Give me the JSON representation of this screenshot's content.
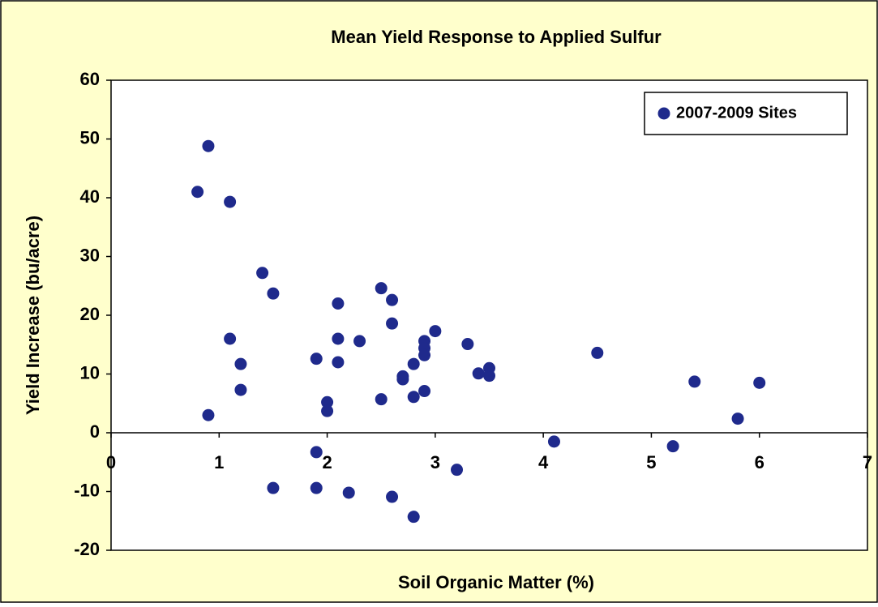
{
  "chart_data": {
    "type": "scatter",
    "title": "Mean Yield Response to Applied Sulfur",
    "x_label": "Soil Organic Matter (%)",
    "y_label": "Yield Increase (bu/acre)",
    "series": [
      {
        "name": "2007-2009 Sites",
        "color": "#1f2a8c",
        "x": [
          0.8,
          0.9,
          1.1,
          0.9,
          1.1,
          1.2,
          1.2,
          1.4,
          1.5,
          1.5,
          1.9,
          1.9,
          1.9,
          2.0,
          2.0,
          2.1,
          2.1,
          2.1,
          2.2,
          2.3,
          2.5,
          2.5,
          2.6,
          2.6,
          2.6,
          2.7,
          2.7,
          2.8,
          2.8,
          2.8,
          2.9,
          2.9,
          2.9,
          2.9,
          3.0,
          3.2,
          3.3,
          3.4,
          3.5,
          3.5,
          4.1,
          4.5,
          5.2,
          5.4,
          5.8,
          6.0
        ],
        "values": [
          41,
          48.8,
          39.3,
          3,
          16,
          11.7,
          7.3,
          27.2,
          23.7,
          -9.4,
          12.6,
          -3.3,
          -9.4,
          5.2,
          3.7,
          22,
          16,
          12,
          -10.2,
          15.6,
          24.6,
          5.7,
          22.6,
          18.6,
          -10.9,
          9.6,
          9.1,
          11.7,
          6.1,
          -14.3,
          15.6,
          14.4,
          13.2,
          7.1,
          17.3,
          -6.3,
          15.1,
          10.1,
          11,
          9.7,
          -1.5,
          13.6,
          -2.3,
          8.7,
          2.4,
          8.5
        ]
      }
    ],
    "xlim": [
      0,
      7
    ],
    "xticks": [
      0,
      1,
      2,
      3,
      4,
      5,
      6,
      7
    ],
    "ylim": [
      -20,
      60
    ],
    "yticks": [
      -20,
      -10,
      0,
      10,
      20,
      30,
      40,
      50,
      60
    ],
    "legend": "upper-right"
  }
}
